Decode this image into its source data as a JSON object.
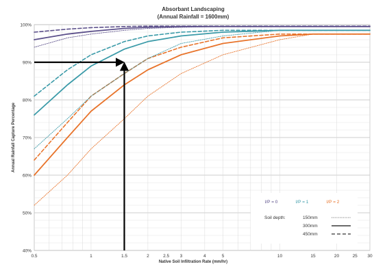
{
  "chart_data": {
    "type": "line",
    "title": "Absorbant Landscaping",
    "subtitle": "(Annual Rainfall = 1600mm)",
    "xlabel": "Native Soil Infiltration Rate (mm/hr)",
    "ylabel": "Annual Rainfall Capture Percentage",
    "x_scale": "log",
    "xlim": [
      0.5,
      30
    ],
    "ylim": [
      40,
      100
    ],
    "x_ticks": [
      "0.5",
      "1",
      "1.5",
      "2",
      "2.5",
      "3",
      "4",
      "5",
      "10",
      "15",
      "20",
      "25",
      "30"
    ],
    "x_tick_values": [
      0.5,
      1,
      1.5,
      2,
      2.5,
      3,
      4,
      5,
      10,
      15,
      20,
      25,
      30
    ],
    "y_ticks": [
      "40%",
      "50%",
      "60%",
      "70%",
      "80%",
      "90%",
      "100%"
    ],
    "y_tick_values": [
      40,
      50,
      60,
      70,
      80,
      90,
      100
    ],
    "grid": true,
    "legend": {
      "placement": "bottom-right",
      "ip_labels": [
        "I/P = 0",
        "I/P = 1",
        "I/P = 2"
      ],
      "soil_depth_label": "Soil depth:",
      "depths": [
        "150mm",
        "300mm",
        "450mm"
      ]
    },
    "colors": {
      "ip0": "#5b4f8a",
      "ip1": "#3a9aa8",
      "ip2": "#e8732a",
      "arrow": "#000000"
    },
    "annotation": {
      "x": 1.5,
      "y": 90,
      "arrow_from": [
        1.5,
        40
      ],
      "arrow_to": [
        0.5,
        90
      ]
    },
    "series": [
      {
        "ip": 2,
        "depth": "150mm",
        "x": [
          0.5,
          0.75,
          1,
          1.5,
          2,
          3,
          5,
          10,
          15,
          30
        ],
        "y": [
          52,
          60,
          67,
          75,
          81,
          87,
          92,
          96,
          97.5,
          97.5
        ]
      },
      {
        "ip": 2,
        "depth": "300mm",
        "x": [
          0.5,
          0.75,
          1,
          1.5,
          2,
          3,
          5,
          10,
          15,
          30
        ],
        "y": [
          60,
          70,
          77,
          84,
          88,
          92,
          95,
          97,
          97.5,
          97.5
        ]
      },
      {
        "ip": 2,
        "depth": "450mm",
        "x": [
          0.5,
          0.75,
          1,
          1.5,
          2,
          3,
          5,
          10,
          15,
          30
        ],
        "y": [
          64,
          74,
          81,
          87,
          91,
          94,
          96.5,
          97.5,
          97.5,
          97.5
        ]
      },
      {
        "ip": 1,
        "depth": "150mm",
        "x": [
          0.5,
          0.75,
          1,
          1.5,
          2,
          3,
          5,
          10,
          30
        ],
        "y": [
          67,
          75,
          81,
          87,
          91,
          95,
          97,
          98.5,
          98.5
        ]
      },
      {
        "ip": 1,
        "depth": "300mm",
        "x": [
          0.5,
          0.75,
          1,
          1.5,
          2,
          3,
          5,
          10,
          30
        ],
        "y": [
          76,
          84,
          89,
          93.5,
          95.5,
          97,
          98,
          98.5,
          98.5
        ]
      },
      {
        "ip": 1,
        "depth": "450mm",
        "x": [
          0.5,
          0.75,
          1,
          1.5,
          2,
          3,
          5,
          10,
          30
        ],
        "y": [
          81,
          88,
          92,
          95.5,
          97,
          98,
          98.5,
          98.5,
          98.5
        ]
      },
      {
        "ip": 0,
        "depth": "150mm",
        "x": [
          0.5,
          0.75,
          1,
          1.5,
          2,
          3,
          5,
          10,
          30
        ],
        "y": [
          94,
          96.5,
          97.5,
          98.5,
          99,
          99.3,
          99.5,
          99.5,
          99.5
        ]
      },
      {
        "ip": 0,
        "depth": "300mm",
        "x": [
          0.5,
          0.75,
          1,
          1.5,
          2,
          3,
          5,
          10,
          30
        ],
        "y": [
          96,
          97.5,
          98.2,
          99,
          99.3,
          99.5,
          99.5,
          99.5,
          99.5
        ]
      },
      {
        "ip": 0,
        "depth": "450mm",
        "x": [
          0.5,
          0.75,
          1,
          1.5,
          2,
          3,
          5,
          10,
          30
        ],
        "y": [
          98,
          98.8,
          99.2,
          99.5,
          99.6,
          99.6,
          99.6,
          99.6,
          99.6
        ]
      }
    ]
  }
}
